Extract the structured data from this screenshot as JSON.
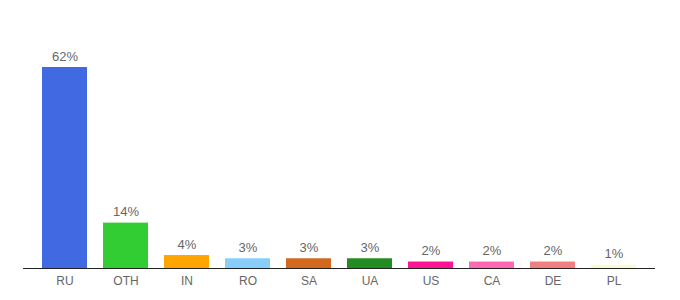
{
  "chart_data": {
    "type": "bar",
    "categories": [
      "RU",
      "OTH",
      "IN",
      "RO",
      "SA",
      "UA",
      "US",
      "CA",
      "DE",
      "PL"
    ],
    "values": [
      62,
      14,
      4,
      3,
      3,
      3,
      2,
      2,
      2,
      1
    ],
    "value_labels": [
      "62%",
      "14%",
      "4%",
      "3%",
      "3%",
      "3%",
      "2%",
      "2%",
      "2%",
      "1%"
    ],
    "colors": [
      "#4169e1",
      "#32cd32",
      "#ffa500",
      "#87cefa",
      "#d2691e",
      "#228b22",
      "#ff1493",
      "#ff69b4",
      "#f08080",
      "#fafad2"
    ],
    "ylim": [
      0,
      62
    ],
    "data_labels": true,
    "tick_labels": "x",
    "grid": false
  }
}
